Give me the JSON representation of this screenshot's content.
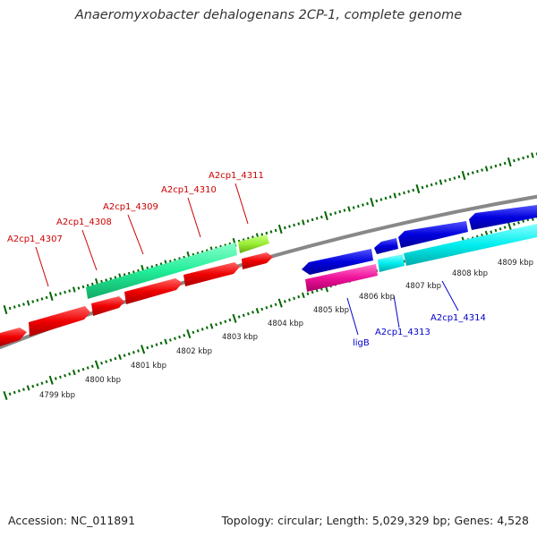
{
  "title": "Anaeromyxobacter dehalogenans 2CP-1, complete genome",
  "footer": {
    "accession": "Accession: NC_011891",
    "stats": "Topology: circular; Length: 5,029,329 bp; Genes: 4,528"
  },
  "scale_labels": [
    "4799 kbp",
    "4800 kbp",
    "4801 kbp",
    "4802 kbp",
    "4803 kbp",
    "4804 kbp",
    "4805 kbp",
    "4806 kbp",
    "4807 kbp",
    "4808 kbp",
    "4809 kbp"
  ],
  "gene_labels": [
    {
      "text": "A2cp1_4307",
      "strand": "forward"
    },
    {
      "text": "A2cp1_4308",
      "strand": "forward"
    },
    {
      "text": "A2cp1_4309",
      "strand": "forward"
    },
    {
      "text": "A2cp1_4310",
      "strand": "forward"
    },
    {
      "text": "A2cp1_4311",
      "strand": "forward"
    },
    {
      "text": "ligB",
      "strand": "reverse"
    },
    {
      "text": "A2cp1_4313",
      "strand": "reverse"
    },
    {
      "text": "A2cp1_4314",
      "strand": "reverse"
    }
  ],
  "colors": {
    "forward_label": "#cc0000",
    "reverse_label": "#0000cc",
    "cds_forward": "#ee0000",
    "cds_reverse": "#0000dd",
    "rna_forward": "#22ee99",
    "rna_forward_small": "#99ee33",
    "rna_reverse": "#00eeee",
    "rna_reverse_pink": "#ee1199",
    "backbone": "#888888",
    "tick": "#006600"
  }
}
